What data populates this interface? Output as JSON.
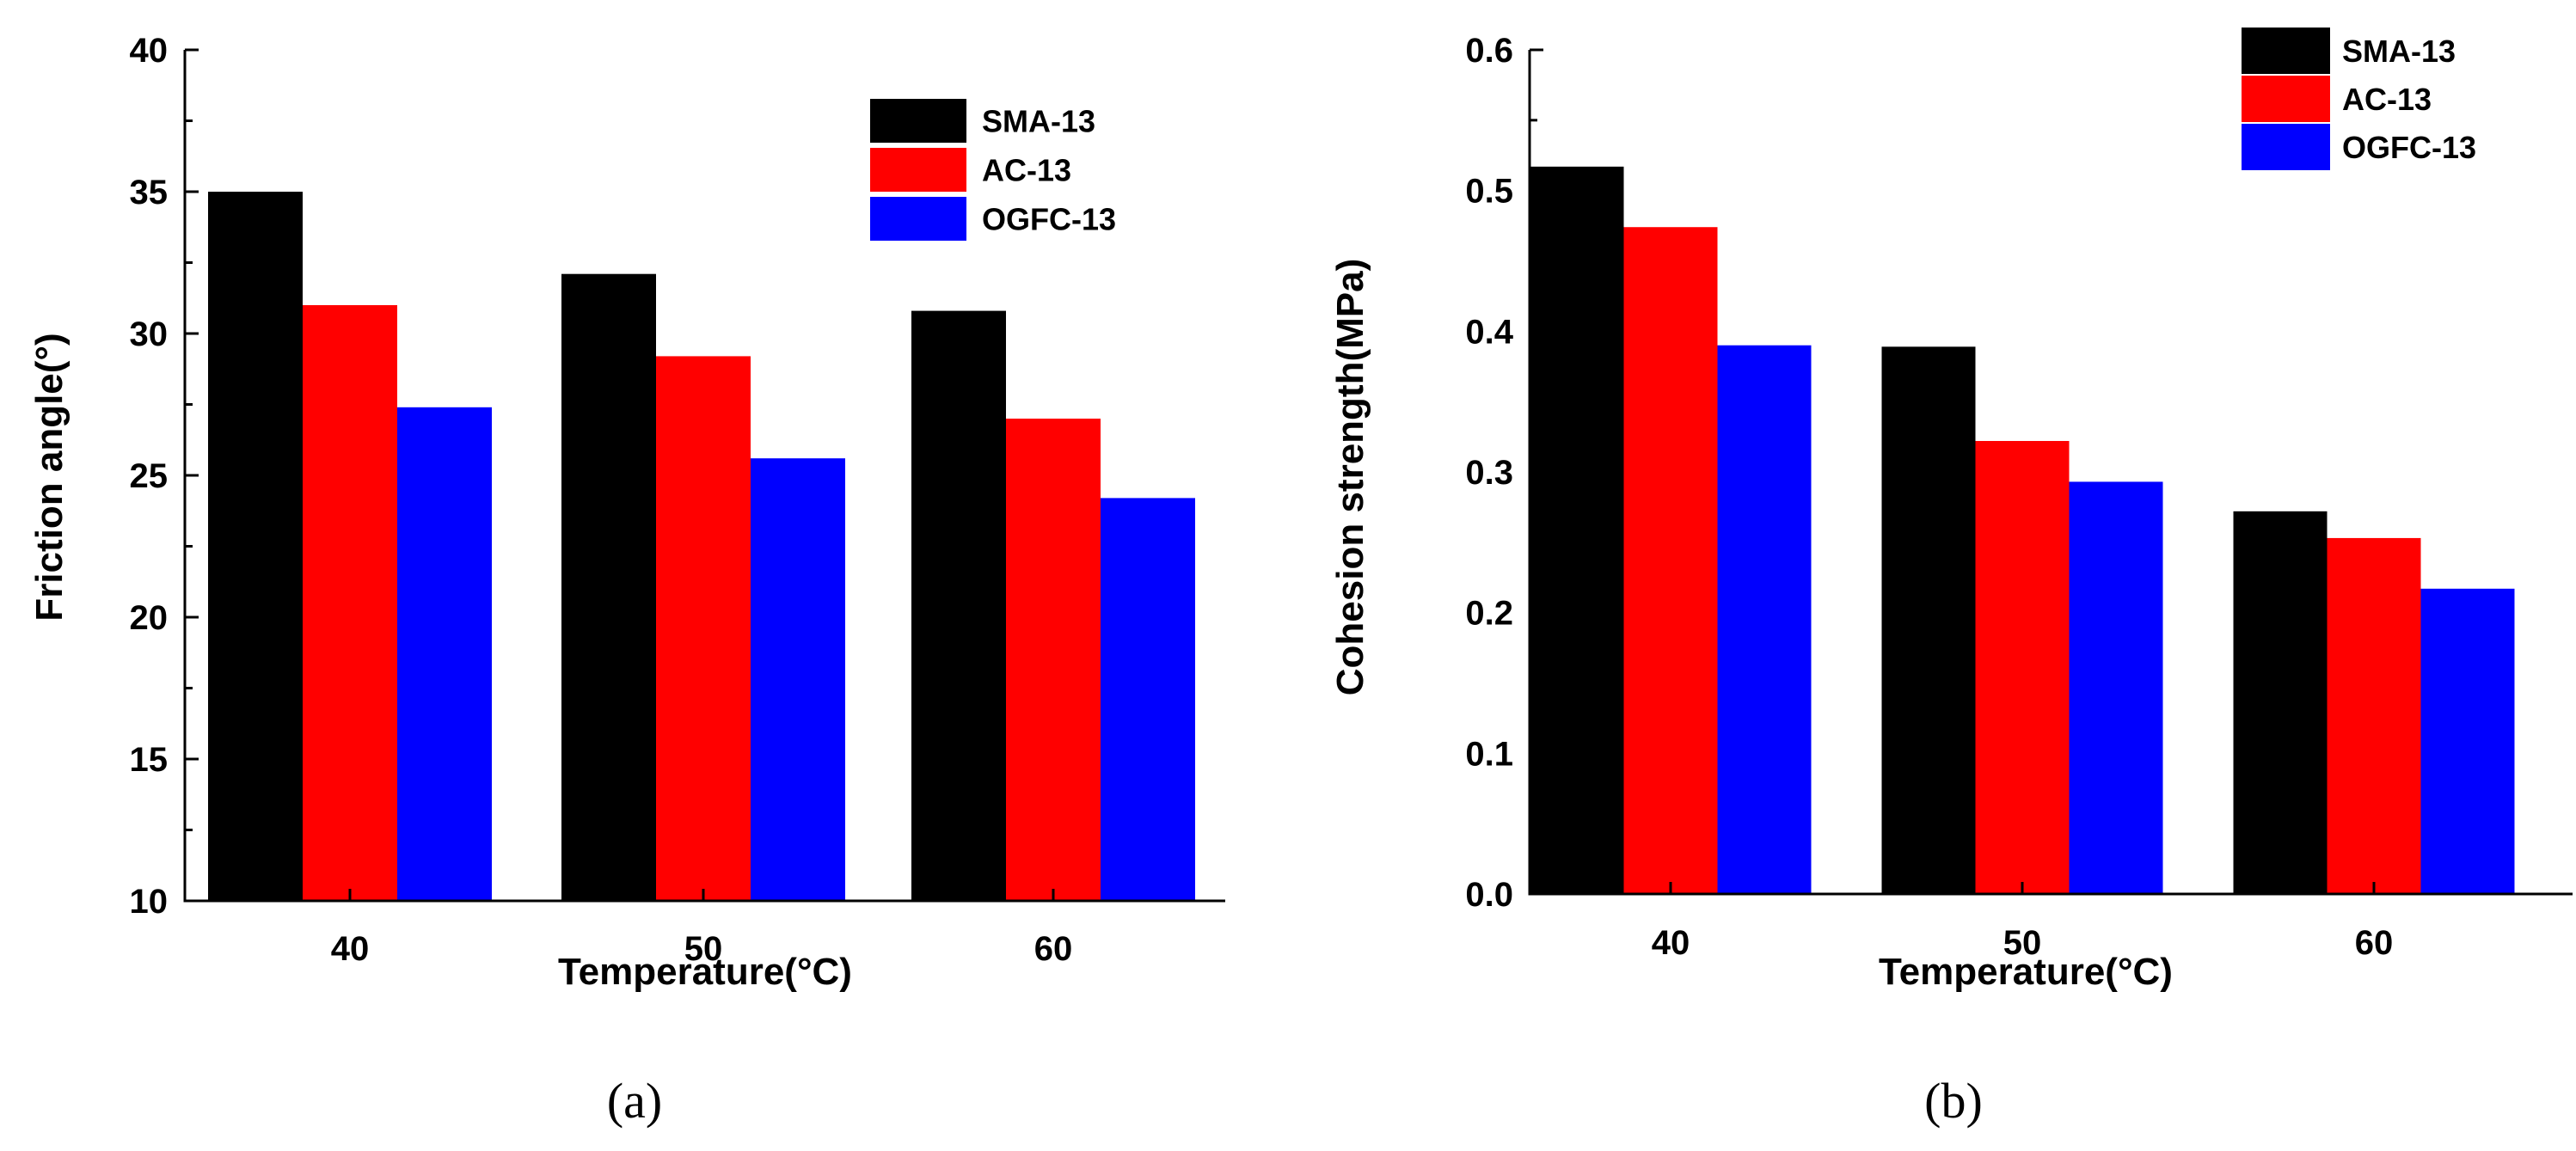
{
  "chart_data": [
    {
      "type": "bar",
      "panel_label": "(a)",
      "categories": [
        "40",
        "50",
        "60"
      ],
      "series": [
        {
          "name": "SMA-13",
          "color": "#000000",
          "values": [
            35.0,
            32.1,
            30.8
          ]
        },
        {
          "name": "AC-13",
          "color": "#ff0000",
          "values": [
            31.0,
            29.2,
            27.0
          ]
        },
        {
          "name": "OGFC-13",
          "color": "#0000ff",
          "values": [
            27.4,
            25.6,
            24.2
          ]
        }
      ],
      "title": "",
      "xlabel": "Temperature(°C)",
      "ylabel": "Friction angle(°)",
      "ylim": [
        10,
        40
      ],
      "yticks": [
        "10",
        "15",
        "20",
        "25",
        "30",
        "35",
        "40"
      ],
      "legend_position": "top-right",
      "grid": false
    },
    {
      "type": "bar",
      "panel_label": "(b)",
      "categories": [
        "40",
        "50",
        "60"
      ],
      "series": [
        {
          "name": "SMA-13",
          "color": "#000000",
          "values": [
            0.517,
            0.389,
            0.272
          ]
        },
        {
          "name": "AC-13",
          "color": "#ff0000",
          "values": [
            0.474,
            0.322,
            0.253
          ]
        },
        {
          "name": "OGFC-13",
          "color": "#0000ff",
          "values": [
            0.39,
            0.293,
            0.217
          ]
        }
      ],
      "title": "",
      "xlabel": "Temperature(°C)",
      "ylabel": "Cohesion strength(MPa)",
      "ylim": [
        0.0,
        0.6
      ],
      "yticks": [
        "0.0",
        "0.1",
        "0.2",
        "0.3",
        "0.4",
        "0.5",
        "0.6"
      ],
      "legend_position": "top-right",
      "grid": false
    }
  ]
}
